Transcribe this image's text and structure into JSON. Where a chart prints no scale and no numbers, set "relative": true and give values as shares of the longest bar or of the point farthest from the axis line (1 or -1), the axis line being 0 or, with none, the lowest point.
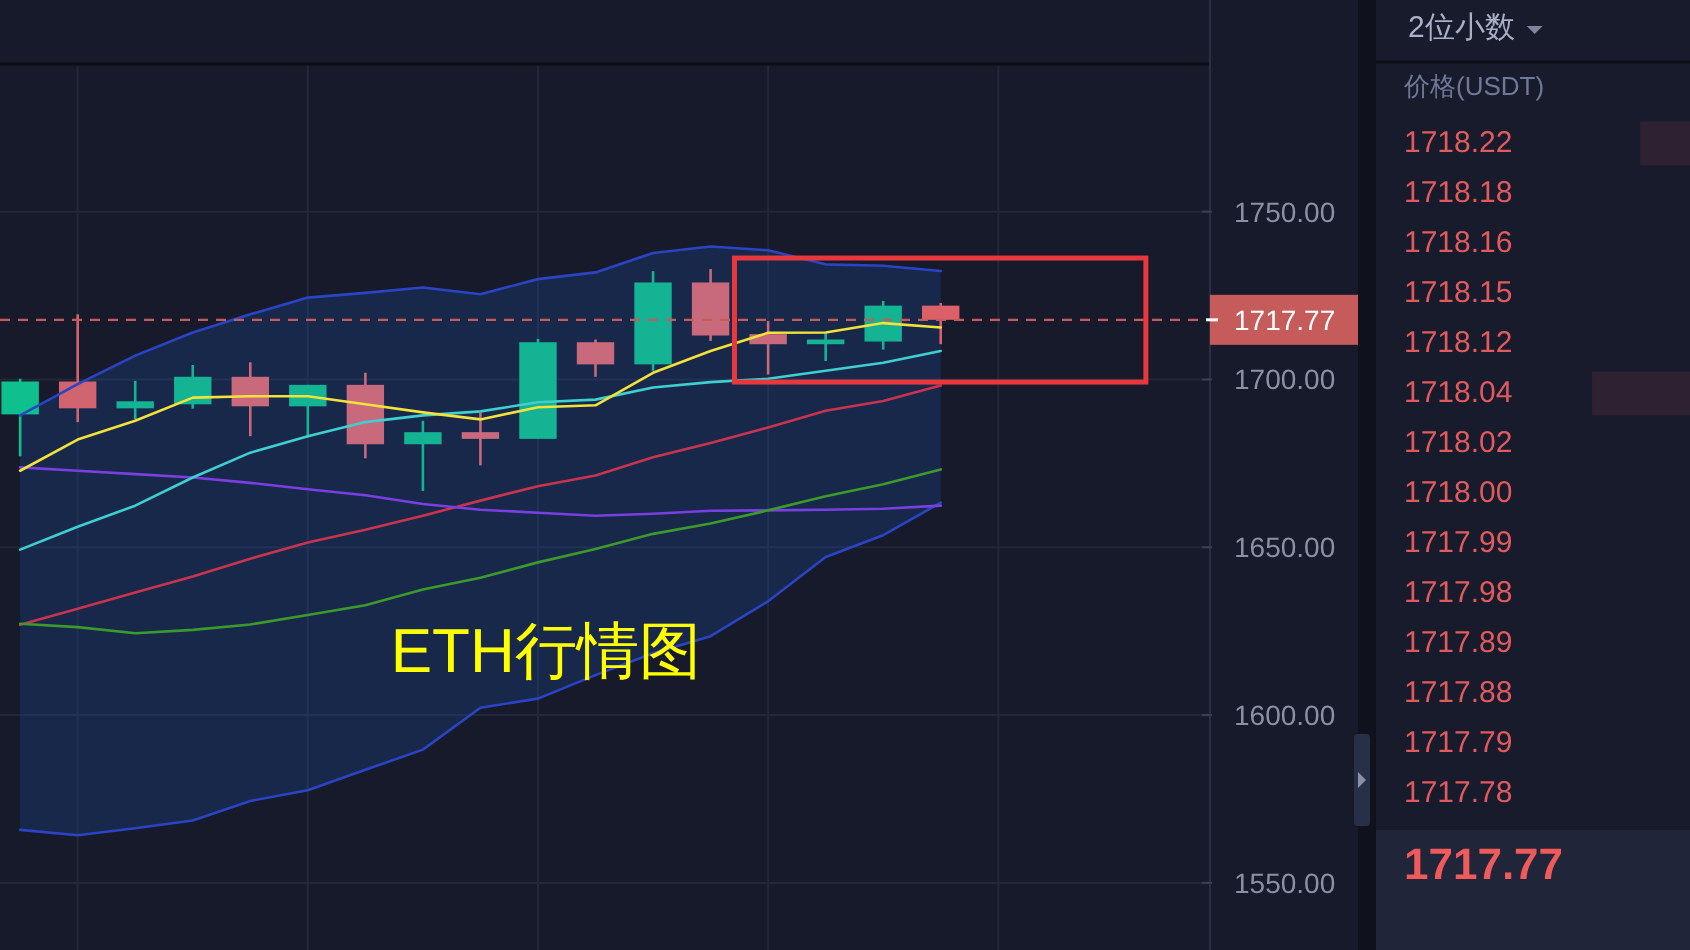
{
  "chart_data": [
    {
      "type": "candlestick",
      "categories": [
        null,
        null,
        null,
        null,
        null,
        null,
        null,
        null,
        null,
        null,
        null,
        null,
        null,
        null,
        null,
        null,
        null
      ],
      "ohlc": [
        [
          1689.6,
          1700.2,
          1677.1,
          1699.4
        ],
        [
          1699.4,
          1719.4,
          1687.3,
          1691.4
        ],
        [
          1691.4,
          1699.6,
          1688.1,
          1693.5
        ],
        [
          1692.6,
          1704.3,
          1691.3,
          1700.8
        ],
        [
          1700.8,
          1705.1,
          1683.1,
          1692.0
        ],
        [
          1692.0,
          1698.4,
          1682.7,
          1698.4
        ],
        [
          1698.4,
          1702.0,
          1676.5,
          1680.7
        ],
        [
          1680.7,
          1687.7,
          1666.8,
          1684.3
        ],
        [
          1684.3,
          1690.1,
          1674.4,
          1682.3
        ],
        [
          1682.3,
          1712.1,
          1682.3,
          1711.1
        ],
        [
          1711.1,
          1711.9,
          1700.8,
          1704.5
        ],
        [
          1704.5,
          1732.3,
          1702.6,
          1728.9
        ],
        [
          1728.9,
          1732.9,
          1711.5,
          1713.1
        ],
        [
          1713.5,
          1717.4,
          1701.5,
          1710.5
        ],
        [
          1710.5,
          1713.9,
          1705.5,
          1711.9
        ],
        [
          1711.3,
          1723.4,
          1708.9,
          1722.0
        ],
        [
          1722.0,
          1722.8,
          1710.5,
          1717.77
        ]
      ],
      "colors": [
        "#0fc08f",
        "#d0646f",
        "#13b394",
        "#13b394",
        "#c86a7b",
        "#13b394",
        "#c86a7b",
        "#13b394",
        "#c86a7b",
        "#13b394",
        "#c86a7b",
        "#13b394",
        "#c86a7b",
        "#c86a7b",
        "#13b394",
        "#13b394",
        "#dc6068"
      ],
      "series": [
        {
          "type": "line",
          "color": "#c8344e",
          "values": [
            1626.9,
            1631.7,
            1636.5,
            1641.3,
            1646.6,
            1651.4,
            1655.2,
            1659.4,
            1663.9,
            1668.2,
            1671.4,
            1676.8,
            1681.1,
            1685.7,
            1690.7,
            1693.6,
            1698.2
          ],
          "lower": [
            1565.8,
            1564.2,
            1566.3,
            1568.6,
            1574.4,
            1577.6,
            1583.7,
            1589.7,
            1602.2,
            1604.9,
            1611.9,
            1618.4,
            1623.5,
            1633.9,
            1647.1,
            1653.6,
            1663.3
          ],
          "upper": [
            1689.3,
            1698.6,
            1707.1,
            1714.0,
            1719.4,
            1724.4,
            1725.8,
            1727.4,
            1725.4,
            1729.9,
            1731.9,
            1737.7,
            1739.6,
            1738.5,
            1734.3,
            1733.9,
            1732.3
          ]
        },
        {
          "type": "line",
          "color": "#2a44c4",
          "values": [
            1689.3,
            1698.6,
            1707.1,
            1714.0,
            1719.4,
            1724.4,
            1725.8,
            1727.4,
            1725.4,
            1729.9,
            1731.9,
            1737.7,
            1739.6,
            1738.5,
            1734.3,
            1733.9,
            1732.3
          ]
        },
        {
          "type": "line",
          "color": "#2a44c4",
          "values": [
            1565.8,
            1564.2,
            1566.3,
            1568.6,
            1574.4,
            1577.6,
            1583.7,
            1589.7,
            1602.2,
            1604.9,
            1611.9,
            1618.4,
            1623.5,
            1633.9,
            1647.1,
            1653.6,
            1663.3
          ]
        },
        {
          "type": "line",
          "color": "#7a3fe0",
          "values": [
            1673.8,
            1672.8,
            1671.8,
            1670.8,
            1669.2,
            1667.3,
            1665.5,
            1662.9,
            1661.2,
            1660.3,
            1659.4,
            1660.0,
            1660.9,
            1661.0,
            1661.2,
            1661.5,
            1662.4
          ]
        },
        {
          "type": "line",
          "color": "#3c9a2c",
          "values": [
            1627.2,
            1626.2,
            1624.4,
            1625.4,
            1627.0,
            1629.8,
            1632.7,
            1637.4,
            1640.9,
            1645.5,
            1649.5,
            1654.0,
            1657.1,
            1661.0,
            1665.2,
            1668.8,
            1673.2
          ]
        },
        {
          "type": "line",
          "color": "#3fcfcf",
          "values": [
            1649.3,
            1656.1,
            1662.4,
            1670.8,
            1678.2,
            1683.1,
            1687.3,
            1689.3,
            1690.5,
            1693.2,
            1694.0,
            1697.6,
            1699.2,
            1700.2,
            1702.6,
            1705.0,
            1708.5
          ]
        },
        {
          "type": "line",
          "color": "#f2e23a",
          "values": [
            1672.8,
            1682.1,
            1687.7,
            1694.6,
            1695.0,
            1695.0,
            1692.6,
            1690.2,
            1688.1,
            1691.7,
            1692.3,
            1702.0,
            1708.5,
            1713.9,
            1714.0,
            1716.8,
            1715.5
          ]
        }
      ],
      "ylim": [
        1530,
        1794
      ],
      "yticks": [
        {
          "value": 1550,
          "label": "1550.00"
        },
        {
          "value": 1600,
          "label": "1600.00"
        },
        {
          "value": 1650,
          "label": "1650.00"
        },
        {
          "value": 1700,
          "label": "1700.00"
        },
        {
          "value": 1750,
          "label": "1750.00"
        }
      ],
      "grid": true,
      "tick_labels": "y",
      "ref_lines": [
        {
          "axis": "y",
          "value": 1717.77,
          "label": "1717.77",
          "color": "#c65b5b",
          "line_style": "dashed"
        }
      ],
      "annotations": [
        "ETH行情图"
      ]
    },
    {
      "type": "bar",
      "orientation": "horizontal",
      "relative": true,
      "title": "2位小数",
      "ylabel": "价格(USDT)",
      "categories": [
        "1718.22",
        "1718.18",
        "1718.16",
        "1718.15",
        "1718.12",
        "1718.04",
        "1718.02",
        "1718.00",
        "1717.99",
        "1717.98",
        "1717.89",
        "1717.88",
        "1717.79",
        "1717.78"
      ],
      "values": [
        0.51,
        null,
        null,
        null,
        null,
        1,
        null,
        null,
        null,
        null,
        null,
        null,
        null,
        null
      ],
      "color": "#2e2132",
      "annotations": [
        "1717.77"
      ]
    }
  ]
}
